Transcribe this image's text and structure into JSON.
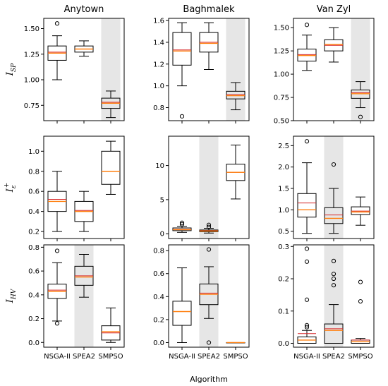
{
  "chart_data": {
    "type": "boxplot",
    "x_label": "Algorithm",
    "categories": [
      "NSGA-II",
      "SPEA2",
      "SMPSO"
    ],
    "column_titles": [
      "Anytown",
      "Baghmalek",
      "Van Zyl"
    ],
    "row_labels": [
      {
        "main": "I",
        "sub": "SP",
        "sup": ""
      },
      {
        "main": "I",
        "sub": "ε",
        "sup": "+"
      },
      {
        "main": "I",
        "sub": "HV",
        "sup": ""
      }
    ],
    "highlight_color": "#e6e6e6",
    "median_color": "#ff7f0e",
    "mean_color": "#d62728",
    "panels": [
      {
        "row": 0,
        "col": 0,
        "ylim": [
          0.6,
          1.6
        ],
        "yticks": [
          0.75,
          1.0,
          1.25,
          1.5
        ],
        "ytick_labels": [
          "0.75",
          "1.00",
          "1.25",
          "1.50"
        ],
        "highlight": 2,
        "boxes": [
          {
            "whislo": 1.0,
            "q1": 1.19,
            "med": 1.26,
            "mean": 1.27,
            "q3": 1.33,
            "whishi": 1.43,
            "fliers": [
              1.55
            ]
          },
          {
            "whislo": 1.23,
            "q1": 1.27,
            "med": 1.3,
            "mean": 1.3,
            "q3": 1.33,
            "whishi": 1.38,
            "fliers": []
          },
          {
            "whislo": 0.63,
            "q1": 0.72,
            "med": 0.77,
            "mean": 0.78,
            "q3": 0.82,
            "whishi": 0.89,
            "fliers": []
          }
        ]
      },
      {
        "row": 0,
        "col": 1,
        "ylim": [
          0.68,
          1.62
        ],
        "yticks": [
          0.8,
          1.0,
          1.2,
          1.4,
          1.6
        ],
        "ytick_labels": [
          "0.8",
          "1.0",
          "1.2",
          "1.4",
          "1.6"
        ],
        "highlight": 2,
        "boxes": [
          {
            "whislo": 1.0,
            "q1": 1.19,
            "med": 1.32,
            "mean": 1.33,
            "q3": 1.49,
            "whishi": 1.58,
            "fliers": [
              0.72
            ]
          },
          {
            "whislo": 1.15,
            "q1": 1.31,
            "med": 1.39,
            "mean": 1.4,
            "q3": 1.49,
            "whishi": 1.58,
            "fliers": []
          },
          {
            "whislo": 0.78,
            "q1": 0.88,
            "med": 0.91,
            "mean": 0.92,
            "q3": 0.95,
            "whishi": 1.03,
            "fliers": []
          }
        ]
      },
      {
        "row": 0,
        "col": 2,
        "ylim": [
          0.5,
          1.6
        ],
        "yticks": [
          0.5,
          0.75,
          1.0,
          1.25,
          1.5
        ],
        "ytick_labels": [
          "0.50",
          "0.75",
          "1.00",
          "1.25",
          "1.50"
        ],
        "highlight": 2,
        "boxes": [
          {
            "whislo": 1.04,
            "q1": 1.14,
            "med": 1.2,
            "mean": 1.21,
            "q3": 1.27,
            "whishi": 1.42,
            "fliers": [
              1.53
            ]
          },
          {
            "whislo": 1.13,
            "q1": 1.25,
            "med": 1.32,
            "mean": 1.31,
            "q3": 1.37,
            "whishi": 1.5,
            "fliers": []
          },
          {
            "whislo": 0.64,
            "q1": 0.74,
            "med": 0.79,
            "mean": 0.8,
            "q3": 0.83,
            "whishi": 0.92,
            "fliers": [
              0.54
            ]
          }
        ]
      },
      {
        "row": 1,
        "col": 0,
        "ylim": [
          0.13,
          1.15
        ],
        "yticks": [
          0.2,
          0.4,
          0.6,
          0.8,
          1.0
        ],
        "ytick_labels": [
          "0.2",
          "0.4",
          "0.6",
          "0.8",
          "1.0"
        ],
        "highlight": -1,
        "boxes": [
          {
            "whislo": 0.2,
            "q1": 0.4,
            "med": 0.5,
            "mean": 0.52,
            "q3": 0.6,
            "whishi": 0.8,
            "fliers": []
          },
          {
            "whislo": 0.2,
            "q1": 0.3,
            "med": 0.4,
            "mean": 0.41,
            "q3": 0.5,
            "whishi": 0.6,
            "fliers": []
          },
          {
            "whislo": 0.57,
            "q1": 0.67,
            "med": 0.8,
            "mean": 0.8,
            "q3": 1.0,
            "whishi": 1.1,
            "fliers": []
          }
        ]
      },
      {
        "row": 1,
        "col": 1,
        "ylim": [
          -0.7,
          14.3
        ],
        "yticks": [
          0,
          5,
          10
        ],
        "ytick_labels": [
          "0",
          "5",
          "10"
        ],
        "highlight": 1,
        "boxes": [
          {
            "whislo": 0.2,
            "q1": 0.45,
            "med": 0.6,
            "mean": 0.65,
            "q3": 0.85,
            "whishi": 1.1,
            "fliers": [
              1.4,
              1.6
            ]
          },
          {
            "whislo": 0.1,
            "q1": 0.3,
            "med": 0.4,
            "mean": 0.45,
            "q3": 0.55,
            "whishi": 0.8,
            "fliers": [
              1.0,
              1.3
            ]
          },
          {
            "whislo": 5.1,
            "q1": 7.8,
            "med": 9.0,
            "mean": 9.0,
            "q3": 10.2,
            "whishi": 13.0,
            "fliers": []
          }
        ]
      },
      {
        "row": 1,
        "col": 2,
        "ylim": [
          0.33,
          2.72
        ],
        "yticks": [
          0.5,
          1.0,
          1.5,
          2.0,
          2.5
        ],
        "ytick_labels": [
          "0.5",
          "1.0",
          "1.5",
          "2.0",
          "2.5"
        ],
        "highlight": 1,
        "boxes": [
          {
            "whislo": 0.45,
            "q1": 0.83,
            "med": 1.0,
            "mean": 1.16,
            "q3": 1.38,
            "whishi": 2.1,
            "fliers": [
              2.6
            ]
          },
          {
            "whislo": 0.45,
            "q1": 0.68,
            "med": 0.8,
            "mean": 0.88,
            "q3": 1.05,
            "whishi": 1.5,
            "fliers": [
              2.06
            ]
          },
          {
            "whislo": 0.64,
            "q1": 0.89,
            "med": 0.95,
            "mean": 0.97,
            "q3": 1.07,
            "whishi": 1.3,
            "fliers": []
          }
        ]
      },
      {
        "row": 2,
        "col": 0,
        "ylim": [
          -0.04,
          0.82
        ],
        "yticks": [
          0.0,
          0.2,
          0.4,
          0.6,
          0.8
        ],
        "ytick_labels": [
          "0.0",
          "0.2",
          "0.4",
          "0.6",
          "0.8"
        ],
        "highlight": 1,
        "boxes": [
          {
            "whislo": 0.18,
            "q1": 0.37,
            "med": 0.43,
            "mean": 0.44,
            "q3": 0.49,
            "whishi": 0.67,
            "fliers": [
              0.16,
              0.77
            ]
          },
          {
            "whislo": 0.38,
            "q1": 0.48,
            "med": 0.55,
            "mean": 0.56,
            "q3": 0.64,
            "whishi": 0.74,
            "fliers": []
          },
          {
            "whislo": 0.0,
            "q1": 0.02,
            "med": 0.09,
            "mean": 0.08,
            "q3": 0.14,
            "whishi": 0.29,
            "fliers": []
          }
        ]
      },
      {
        "row": 2,
        "col": 1,
        "ylim": [
          -0.04,
          0.85
        ],
        "yticks": [
          0.0,
          0.2,
          0.4,
          0.6,
          0.8
        ],
        "ytick_labels": [
          "0.0",
          "0.2",
          "0.4",
          "0.6",
          "0.8"
        ],
        "highlight": 1,
        "boxes": [
          {
            "whislo": 0.0,
            "q1": 0.15,
            "med": 0.27,
            "mean": 0.27,
            "q3": 0.36,
            "whishi": 0.65,
            "fliers": []
          },
          {
            "whislo": 0.21,
            "q1": 0.33,
            "med": 0.42,
            "mean": 0.43,
            "q3": 0.51,
            "whishi": 0.66,
            "fliers": [
              0.81,
              0.0
            ]
          },
          {
            "whislo": 0.0,
            "q1": 0.0,
            "med": 0.0,
            "mean": 0.0,
            "q3": 0.0,
            "whishi": 0.0,
            "fliers": []
          }
        ]
      },
      {
        "row": 2,
        "col": 2,
        "ylim": [
          -0.012,
          0.305
        ],
        "yticks": [
          0.0,
          0.1,
          0.2,
          0.3
        ],
        "ytick_labels": [
          "0.0",
          "0.1",
          "0.2",
          "0.3"
        ],
        "highlight": 1,
        "boxes": [
          {
            "whislo": 0.0,
            "q1": 0.0,
            "med": 0.01,
            "mean": 0.03,
            "q3": 0.02,
            "whishi": 0.04,
            "fliers": [
              0.05,
              0.056,
              0.135,
              0.253,
              0.293
            ]
          },
          {
            "whislo": 0.0,
            "q1": 0.0,
            "med": 0.04,
            "mean": 0.045,
            "q3": 0.06,
            "whishi": 0.12,
            "fliers": [
              0.18,
              0.2,
              0.215,
              0.255
            ]
          },
          {
            "whislo": 0.0,
            "q1": 0.0,
            "med": 0.005,
            "mean": 0.01,
            "q3": 0.01,
            "whishi": 0.015,
            "fliers": [
              0.13,
              0.19
            ]
          }
        ]
      }
    ]
  }
}
